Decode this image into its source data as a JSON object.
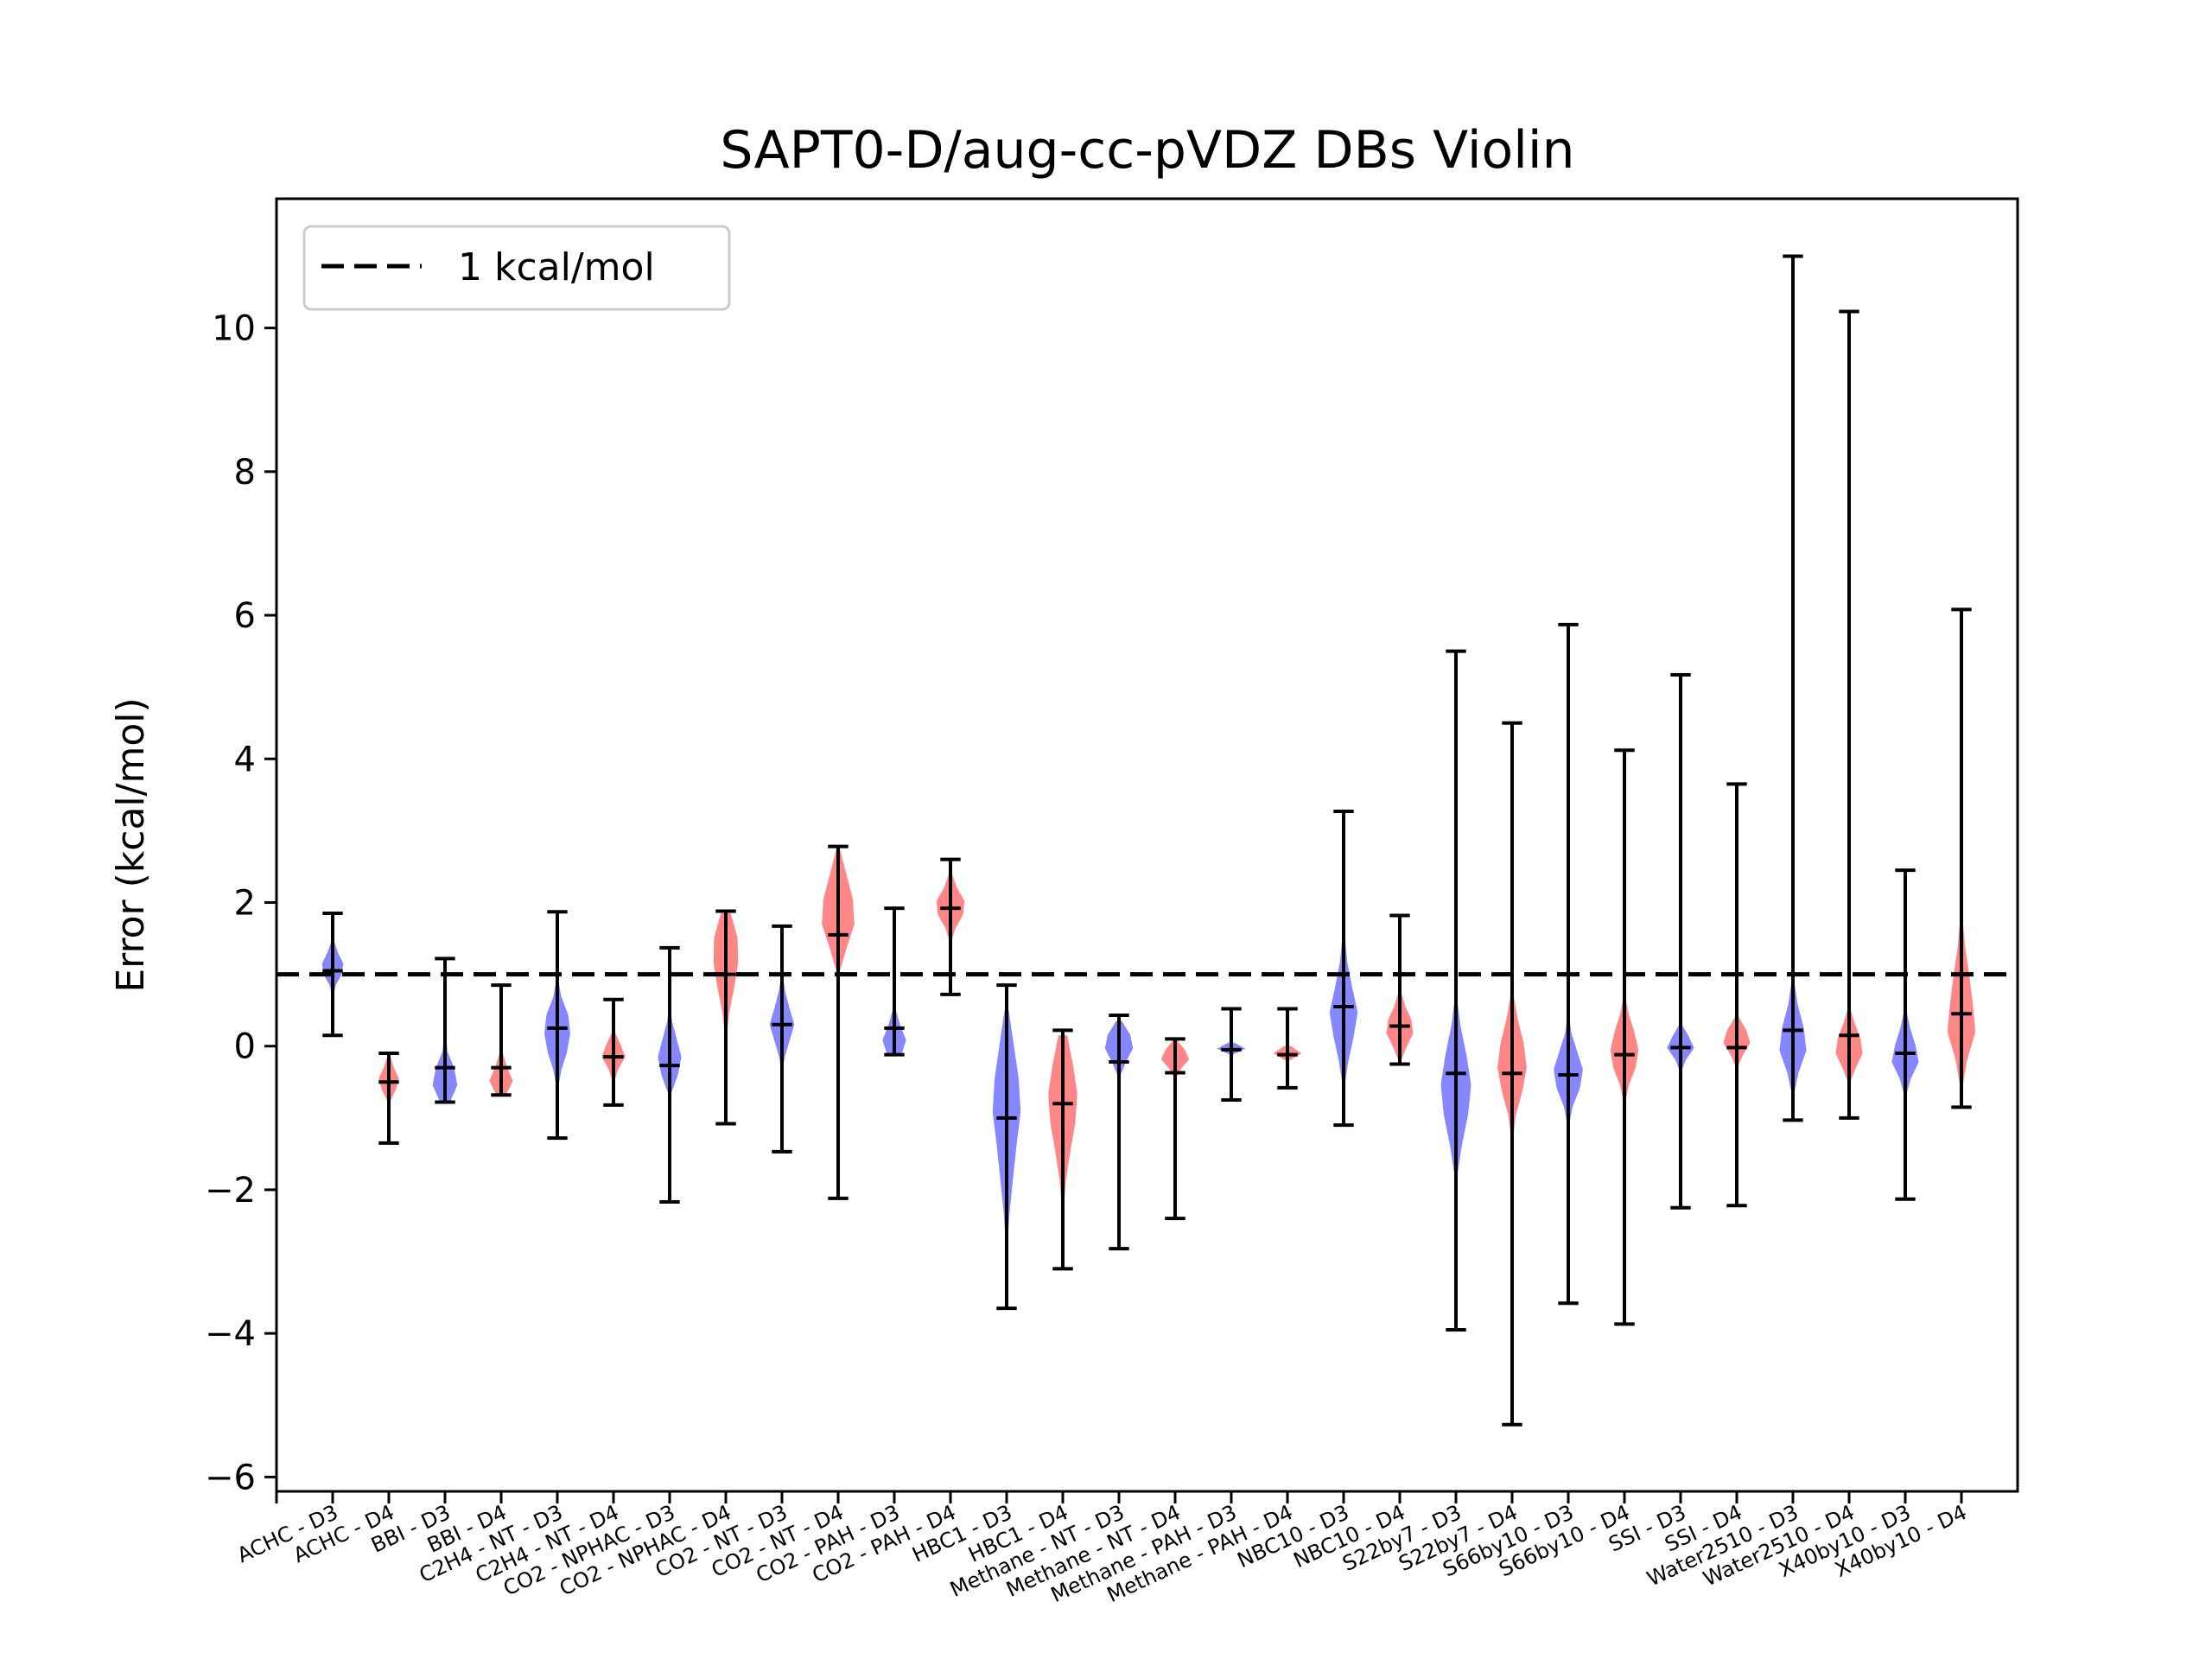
{
  "chart_data": {
    "type": "violin",
    "title": "SAPT0-D/aug-cc-pVDZ DBs Violin",
    "xlabel": "",
    "ylabel": "Error (kcal/mol)",
    "ylim": [
      -6.2,
      11.8
    ],
    "yticks": [
      -6,
      -4,
      -2,
      0,
      2,
      4,
      6,
      8,
      10
    ],
    "ytick_labels": [
      "−6",
      "−4",
      "−2",
      "0",
      "2",
      "4",
      "6",
      "8",
      "10"
    ],
    "reference_line": {
      "y": 1,
      "label": "1 kcal/mol",
      "style": "dashed",
      "color": "#000000"
    },
    "legend": {
      "placement": "top-left",
      "entries": [
        "1 kcal/mol"
      ]
    },
    "grid": false,
    "colors": {
      "D3": "#7f7fff",
      "D4": "#ff7f7f",
      "whisker": "#000000"
    },
    "categories": [
      {
        "label": "ACHC - D3",
        "min": 0.15,
        "max": 1.85,
        "median": 1.05,
        "p5": 0.7,
        "p95": 1.6,
        "density": [
          0.05,
          0.3,
          0.85,
          1.0,
          0.5,
          0.15,
          0.05
        ],
        "width": 0.38
      },
      {
        "label": "ACHC - D4",
        "min": -1.35,
        "max": -0.1,
        "median": -0.5,
        "p5": -0.9,
        "p95": -0.15,
        "density": [
          0.05,
          0.2,
          0.7,
          1.0,
          0.5,
          0.15
        ],
        "width": 0.36
      },
      {
        "label": "BBI - D3",
        "min": -0.78,
        "max": 1.22,
        "median": -0.3,
        "p5": -0.78,
        "p95": 0.4,
        "density": [
          0.4,
          1.0,
          0.75,
          0.2,
          0.08,
          0.03
        ],
        "width": 0.44
      },
      {
        "label": "BBI - D4",
        "min": -0.68,
        "max": 0.85,
        "median": -0.3,
        "p5": -0.68,
        "p95": 0.1,
        "density": [
          0.4,
          1.0,
          0.5,
          0.12,
          0.04
        ],
        "width": 0.42
      },
      {
        "label": "C2H4 - NT - D3",
        "min": -1.28,
        "max": 1.87,
        "median": 0.25,
        "p5": -0.6,
        "p95": 0.95,
        "density": [
          0.05,
          0.3,
          0.75,
          1.0,
          0.85,
          0.3,
          0.05
        ],
        "width": 0.46
      },
      {
        "label": "C2H4 - NT - D4",
        "min": -0.82,
        "max": 0.65,
        "median": -0.15,
        "p5": -0.5,
        "p95": 0.2,
        "density": [
          0.05,
          0.4,
          1.0,
          0.6,
          0.1
        ],
        "width": 0.42
      },
      {
        "label": "CO2 - NPHAC - D3",
        "min": -2.17,
        "max": 1.37,
        "median": -0.27,
        "p5": -0.9,
        "p95": 0.6,
        "density": [
          0.02,
          0.15,
          0.7,
          1.0,
          0.6,
          0.2,
          0.05
        ],
        "width": 0.42
      },
      {
        "label": "CO2 - NPHAC - D4",
        "min": -1.08,
        "max": 1.88,
        "median": 1.0,
        "p5": 0.15,
        "p95": 1.85,
        "density": [
          0.05,
          0.3,
          0.7,
          1.0,
          0.95,
          0.4
        ],
        "width": 0.44
      },
      {
        "label": "CO2 - NT - D3",
        "min": -1.47,
        "max": 1.67,
        "median": 0.3,
        "p5": -0.4,
        "p95": 1.0,
        "density": [
          0.02,
          0.2,
          0.6,
          1.0,
          0.6,
          0.25,
          0.05
        ],
        "width": 0.44
      },
      {
        "label": "CO2 - NT - D4",
        "min": -2.12,
        "max": 2.78,
        "median": 1.55,
        "p5": 1.0,
        "p95": 2.75,
        "density": [
          0.05,
          0.5,
          1.0,
          0.9,
          0.5,
          0.1
        ],
        "width": 0.58
      },
      {
        "label": "CO2 - PAH - D3",
        "min": -0.12,
        "max": 1.92,
        "median": 0.25,
        "p5": -0.12,
        "p95": 0.7,
        "density": [
          0.6,
          1.0,
          0.5,
          0.15,
          0.04
        ],
        "width": 0.42
      },
      {
        "label": "CO2 - PAH - D4",
        "min": 0.72,
        "max": 2.6,
        "median": 1.92,
        "p5": 1.45,
        "p95": 2.4,
        "density": [
          0.05,
          0.35,
          0.9,
          1.0,
          0.45,
          0.1
        ],
        "width": 0.5
      },
      {
        "label": "HBC1 - D3",
        "min": -3.65,
        "max": 0.85,
        "median": -1.0,
        "p5": -2.8,
        "p95": 0.5,
        "density": [
          0.05,
          0.2,
          0.45,
          0.7,
          1.0,
          0.85,
          0.5,
          0.15
        ],
        "width": 0.5
      },
      {
        "label": "HBC1 - D4",
        "min": -3.1,
        "max": 0.22,
        "median": -0.8,
        "p5": -2.3,
        "p95": 0.15,
        "density": [
          0.05,
          0.2,
          0.5,
          0.85,
          1.0,
          0.7,
          0.3
        ],
        "width": 0.52
      },
      {
        "label": "Methane - NT - D3",
        "min": -2.82,
        "max": 0.43,
        "median": -0.22,
        "p5": -0.6,
        "p95": 0.35,
        "density": [
          0.02,
          0.1,
          0.5,
          1.0,
          0.8,
          0.2
        ],
        "width": 0.5
      },
      {
        "label": "Methane - NT - D4",
        "min": -2.4,
        "max": 0.1,
        "median": -0.37,
        "p5": -0.45,
        "p95": 0.08,
        "density": [
          0.05,
          0.4,
          1.0,
          0.7,
          0.15
        ],
        "width": 0.5
      },
      {
        "label": "Methane - PAH - D3",
        "min": -0.75,
        "max": 0.52,
        "median": -0.05,
        "p5": -0.12,
        "p95": 0.05,
        "density": [
          0.1,
          1.0,
          0.2
        ],
        "width": 0.5
      },
      {
        "label": "Methane - PAH - D4",
        "min": -0.58,
        "max": 0.52,
        "median": -0.12,
        "p5": -0.2,
        "p95": 0.0,
        "density": [
          0.15,
          1.0,
          0.25
        ],
        "width": 0.5
      },
      {
        "label": "NBC10 - D3",
        "min": -1.1,
        "max": 3.27,
        "median": 0.55,
        "p5": -0.6,
        "p95": 1.9,
        "density": [
          0.05,
          0.3,
          0.7,
          1.0,
          0.6,
          0.25,
          0.08,
          0.02
        ],
        "width": 0.5
      },
      {
        "label": "NBC10 - D4",
        "min": -0.25,
        "max": 1.82,
        "median": 0.28,
        "p5": -0.2,
        "p95": 0.75,
        "density": [
          0.1,
          0.5,
          1.0,
          0.85,
          0.4,
          0.1
        ],
        "width": 0.48
      },
      {
        "label": "S22by7 - D3",
        "min": -3.95,
        "max": 5.5,
        "median": -0.38,
        "p5": -2.2,
        "p95": 0.7,
        "density": [
          0.02,
          0.1,
          0.4,
          0.8,
          1.0,
          0.7,
          0.3,
          0.05
        ],
        "width": 0.54
      },
      {
        "label": "S22by7 - D4",
        "min": -5.27,
        "max": 4.5,
        "median": -0.38,
        "p5": -1.3,
        "p95": 0.7,
        "density": [
          0.05,
          0.25,
          0.7,
          1.0,
          0.8,
          0.4,
          0.1
        ],
        "width": 0.52
      },
      {
        "label": "S66by10 - D3",
        "min": -3.58,
        "max": 5.87,
        "median": -0.4,
        "p5": -1.1,
        "p95": 0.45,
        "density": [
          0.05,
          0.3,
          0.8,
          1.0,
          0.6,
          0.2,
          0.05
        ],
        "width": 0.52
      },
      {
        "label": "S66by10 - D4",
        "min": -3.87,
        "max": 4.12,
        "median": -0.12,
        "p5": -0.8,
        "p95": 0.7,
        "density": [
          0.05,
          0.3,
          0.8,
          1.0,
          0.7,
          0.3,
          0.05
        ],
        "width": 0.5
      },
      {
        "label": "SSI - D3",
        "min": -2.25,
        "max": 5.17,
        "median": -0.02,
        "p5": -0.35,
        "p95": 0.3,
        "density": [
          0.05,
          0.4,
          1.0,
          0.6,
          0.1
        ],
        "width": 0.48
      },
      {
        "label": "SSI - D4",
        "min": -2.22,
        "max": 3.65,
        "median": -0.02,
        "p5": -0.3,
        "p95": 0.4,
        "density": [
          0.05,
          0.45,
          1.0,
          0.7,
          0.15
        ],
        "width": 0.48
      },
      {
        "label": "Water2510 - D3",
        "min": -1.03,
        "max": 11.0,
        "median": 0.22,
        "p5": -0.7,
        "p95": 0.9,
        "density": [
          0.05,
          0.4,
          1.0,
          0.8,
          0.35,
          0.1
        ],
        "width": 0.48
      },
      {
        "label": "Water2510 - D4",
        "min": -1.0,
        "max": 10.23,
        "median": 0.15,
        "p5": -0.5,
        "p95": 0.5,
        "density": [
          0.08,
          0.5,
          1.0,
          0.85,
          0.45,
          0.12
        ],
        "width": 0.48
      },
      {
        "label": "X40by10 - D3",
        "min": -2.13,
        "max": 2.45,
        "median": -0.1,
        "p5": -0.7,
        "p95": 0.5,
        "density": [
          0.05,
          0.4,
          1.0,
          0.75,
          0.35,
          0.08
        ],
        "width": 0.48
      },
      {
        "label": "X40by10 - D4",
        "min": -0.85,
        "max": 6.08,
        "median": 0.45,
        "p5": -0.6,
        "p95": 1.8,
        "density": [
          0.05,
          0.4,
          1.0,
          0.8,
          0.55,
          0.25,
          0.08
        ],
        "width": 0.5
      }
    ]
  }
}
